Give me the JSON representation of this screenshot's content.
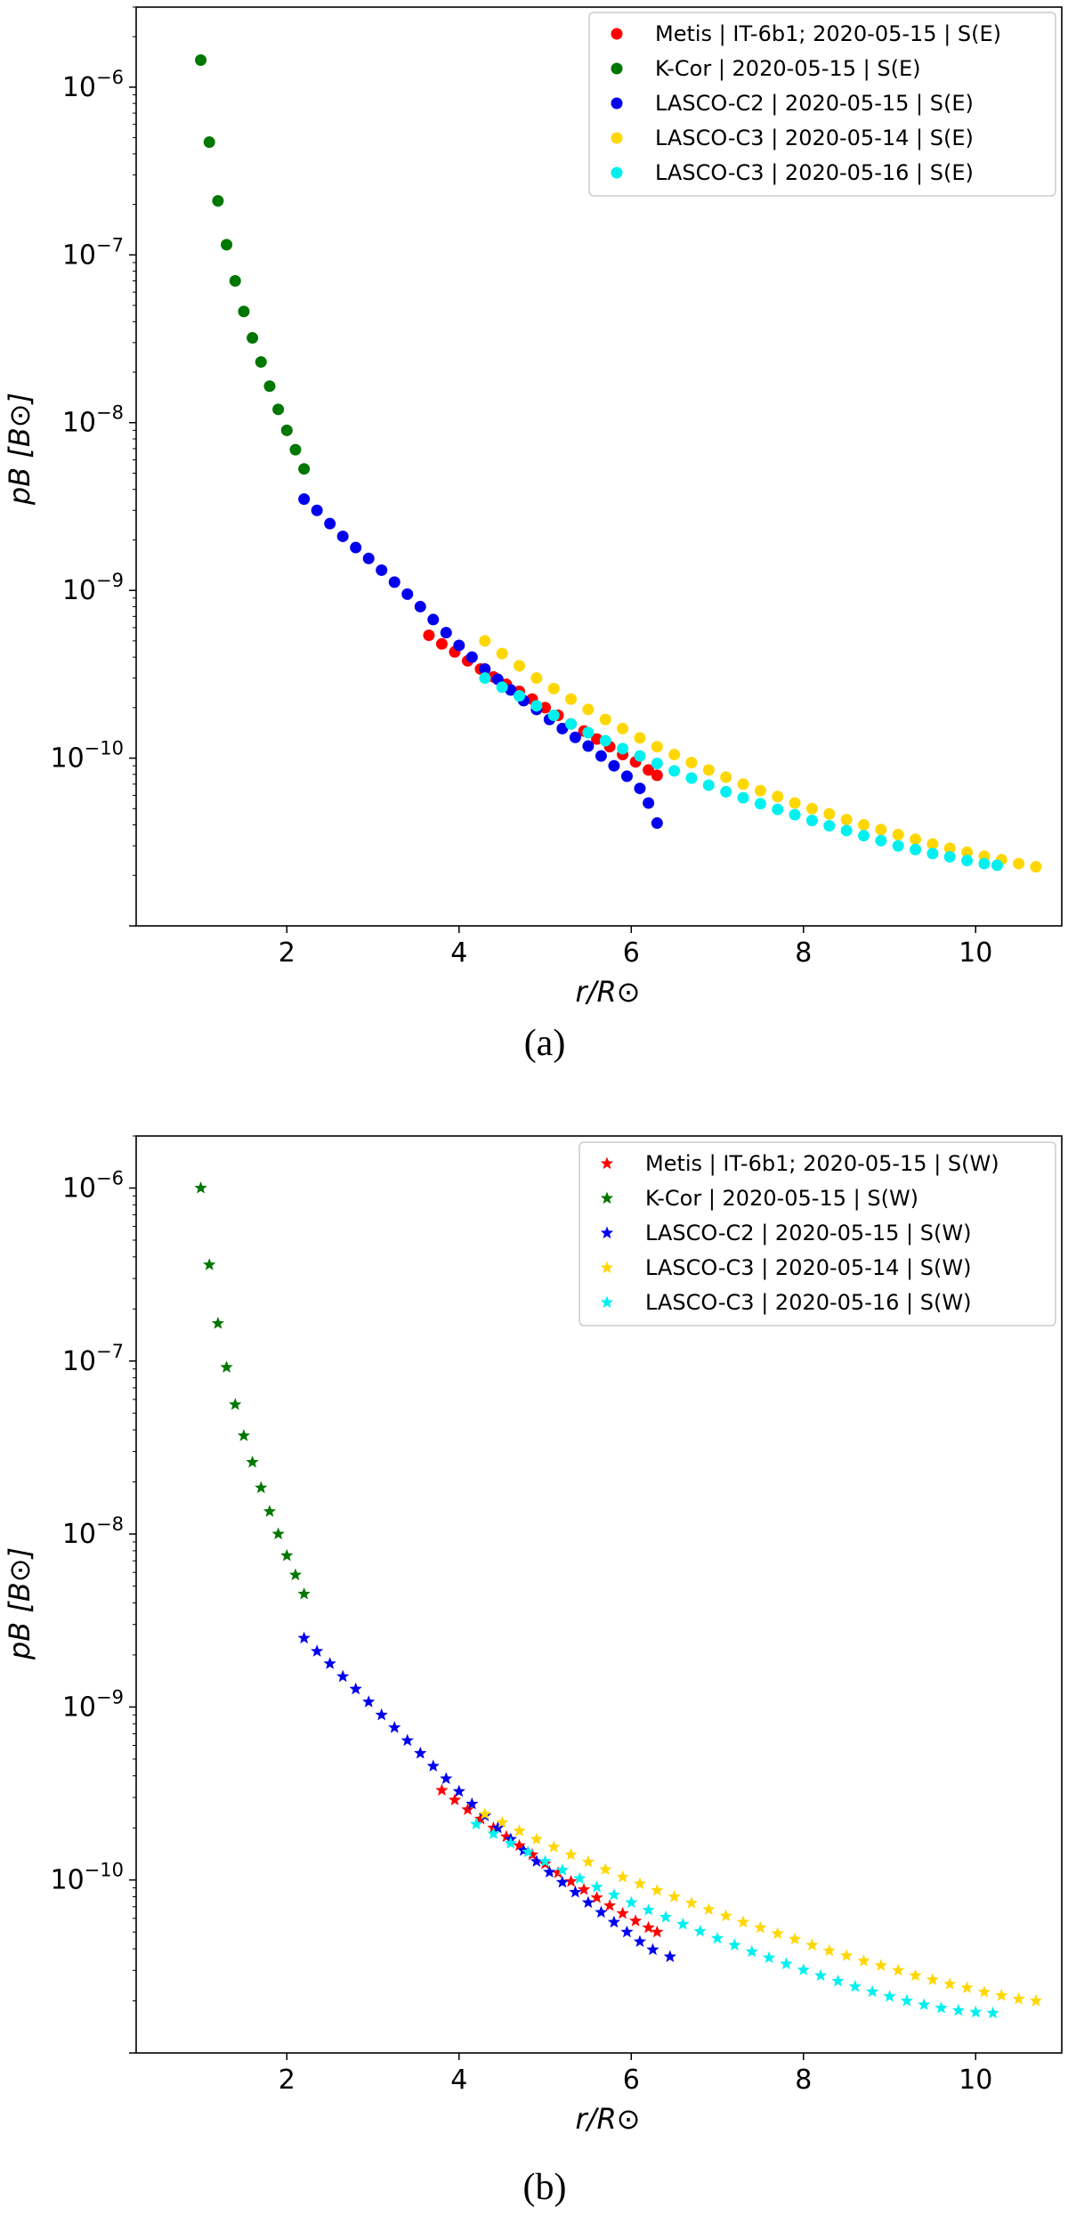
{
  "chart_data": [
    {
      "type": "scatter",
      "caption": "(a)",
      "xlabel": "r/R⊙",
      "ylabel": "pB [B⊙]",
      "yscale": "log",
      "xlim": [
        0.25,
        11.0
      ],
      "ylim": [
        1e-11,
        3e-06
      ],
      "xticks": [
        2,
        4,
        6,
        8,
        10
      ],
      "yticks": [
        1e-10,
        1e-09,
        1e-08,
        1e-07,
        1e-06
      ],
      "ytick_labels": [
        "10^-10",
        "10^-9",
        "10^-8",
        "10^-7",
        "10^-6"
      ],
      "marker": "circle",
      "legend_position": "upper right",
      "series": [
        {
          "name": "Metis | IT-6b1; 2020-05-15 | S(E)",
          "color": "#ff0000",
          "x": [
            3.65,
            3.8,
            3.95,
            4.1,
            4.25,
            4.4,
            4.55,
            4.7,
            4.85,
            5.0,
            5.15,
            5.3,
            5.45,
            5.6,
            5.75,
            5.9,
            6.05,
            6.2,
            6.3
          ],
          "y": [
            5.4e-10,
            4.8e-10,
            4.3e-10,
            3.8e-10,
            3.4e-10,
            3.05e-10,
            2.75e-10,
            2.5e-10,
            2.25e-10,
            2e-10,
            1.8e-10,
            1.6e-10,
            1.45e-10,
            1.3e-10,
            1.17e-10,
            1.05e-10,
            9.5e-11,
            8.5e-11,
            7.9e-11
          ]
        },
        {
          "name": "K-Cor | 2020-05-15 | S(E)",
          "color": "#007700",
          "x": [
            1.0,
            1.1,
            1.2,
            1.3,
            1.4,
            1.5,
            1.6,
            1.7,
            1.8,
            1.9,
            2.0,
            2.1,
            2.2
          ],
          "y": [
            1.45e-06,
            4.7e-07,
            2.1e-07,
            1.15e-07,
            7e-08,
            4.6e-08,
            3.2e-08,
            2.3e-08,
            1.65e-08,
            1.2e-08,
            9e-09,
            6.9e-09,
            5.3e-09
          ]
        },
        {
          "name": "LASCO-C2 | 2020-05-15 | S(E)",
          "color": "#0000ee",
          "x": [
            2.2,
            2.35,
            2.5,
            2.65,
            2.8,
            2.95,
            3.1,
            3.25,
            3.4,
            3.55,
            3.7,
            3.85,
            4.0,
            4.15,
            4.3,
            4.45,
            4.6,
            4.75,
            4.9,
            5.05,
            5.2,
            5.35,
            5.5,
            5.65,
            5.8,
            5.95,
            6.1,
            6.2,
            6.3
          ],
          "y": [
            3.5e-09,
            3e-09,
            2.5e-09,
            2.1e-09,
            1.8e-09,
            1.55e-09,
            1.32e-09,
            1.12e-09,
            9.5e-10,
            8e-10,
            6.7e-10,
            5.6e-10,
            4.7e-10,
            4e-10,
            3.4e-10,
            2.95e-10,
            2.55e-10,
            2.2e-10,
            1.95e-10,
            1.7e-10,
            1.5e-10,
            1.33e-10,
            1.18e-10,
            1.03e-10,
            9e-11,
            7.8e-11,
            6.6e-11,
            5.4e-11,
            4.1e-11
          ]
        },
        {
          "name": "LASCO-C3 | 2020-05-14 | S(E)",
          "color": "#ffd700",
          "x": [
            4.3,
            4.5,
            4.7,
            4.9,
            5.1,
            5.3,
            5.5,
            5.7,
            5.9,
            6.1,
            6.3,
            6.5,
            6.7,
            6.9,
            7.1,
            7.3,
            7.5,
            7.7,
            7.9,
            8.1,
            8.3,
            8.5,
            8.7,
            8.9,
            9.1,
            9.3,
            9.5,
            9.7,
            9.9,
            10.1,
            10.3,
            10.5,
            10.7
          ],
          "y": [
            5e-10,
            4.2e-10,
            3.55e-10,
            3e-10,
            2.6e-10,
            2.25e-10,
            1.95e-10,
            1.7e-10,
            1.5e-10,
            1.32e-10,
            1.17e-10,
            1.05e-10,
            9.4e-11,
            8.5e-11,
            7.7e-11,
            7e-11,
            6.4e-11,
            5.9e-11,
            5.4e-11,
            5e-11,
            4.65e-11,
            4.3e-11,
            4e-11,
            3.75e-11,
            3.5e-11,
            3.28e-11,
            3.08e-11,
            2.9e-11,
            2.75e-11,
            2.6e-11,
            2.48e-11,
            2.35e-11,
            2.25e-11
          ]
        },
        {
          "name": "LASCO-C3 | 2020-05-16 | S(E)",
          "color": "#00f0f0",
          "x": [
            4.3,
            4.5,
            4.7,
            4.9,
            5.1,
            5.3,
            5.5,
            5.7,
            5.9,
            6.1,
            6.3,
            6.5,
            6.7,
            6.9,
            7.1,
            7.3,
            7.5,
            7.7,
            7.9,
            8.1,
            8.3,
            8.5,
            8.7,
            8.9,
            9.1,
            9.3,
            9.5,
            9.7,
            9.9,
            10.1,
            10.25
          ],
          "y": [
            3e-10,
            2.65e-10,
            2.35e-10,
            2.05e-10,
            1.8e-10,
            1.6e-10,
            1.42e-10,
            1.27e-10,
            1.14e-10,
            1.03e-10,
            9.3e-11,
            8.4e-11,
            7.6e-11,
            6.9e-11,
            6.3e-11,
            5.8e-11,
            5.35e-11,
            4.95e-11,
            4.6e-11,
            4.25e-11,
            3.95e-11,
            3.7e-11,
            3.45e-11,
            3.22e-11,
            3e-11,
            2.85e-11,
            2.7e-11,
            2.58e-11,
            2.45e-11,
            2.35e-11,
            2.3e-11
          ]
        }
      ]
    },
    {
      "type": "scatter",
      "caption": "(b)",
      "xlabel": "r/R⊙",
      "ylabel": "pB [B⊙]",
      "yscale": "log",
      "xlim": [
        0.25,
        11.0
      ],
      "ylim": [
        1e-11,
        2e-06
      ],
      "xticks": [
        2,
        4,
        6,
        8,
        10
      ],
      "yticks": [
        1e-10,
        1e-09,
        1e-08,
        1e-07,
        1e-06
      ],
      "ytick_labels": [
        "10^-10",
        "10^-9",
        "10^-8",
        "10^-7",
        "10^-6"
      ],
      "marker": "star",
      "legend_position": "upper right",
      "series": [
        {
          "name": "Metis | IT-6b1; 2020-05-15 | S(W)",
          "color": "#ff0000",
          "x": [
            3.8,
            3.95,
            4.1,
            4.25,
            4.4,
            4.55,
            4.7,
            4.85,
            5.0,
            5.15,
            5.3,
            5.45,
            5.6,
            5.75,
            5.9,
            6.05,
            6.2,
            6.3
          ],
          "y": [
            3.3e-10,
            2.9e-10,
            2.55e-10,
            2.25e-10,
            2e-10,
            1.78e-10,
            1.58e-10,
            1.4e-10,
            1.24e-10,
            1.1e-10,
            9.8e-11,
            8.8e-11,
            7.9e-11,
            7.1e-11,
            6.4e-11,
            5.8e-11,
            5.3e-11,
            5e-11
          ]
        },
        {
          "name": "K-Cor | 2020-05-15 | S(W)",
          "color": "#007700",
          "x": [
            1.0,
            1.1,
            1.2,
            1.3,
            1.4,
            1.5,
            1.6,
            1.7,
            1.8,
            1.9,
            2.0,
            2.1,
            2.2
          ],
          "y": [
            1e-06,
            3.6e-07,
            1.65e-07,
            9.2e-08,
            5.6e-08,
            3.7e-08,
            2.6e-08,
            1.85e-08,
            1.35e-08,
            1e-08,
            7.5e-09,
            5.8e-09,
            4.5e-09
          ]
        },
        {
          "name": "LASCO-C2 | 2020-05-15 | S(W)",
          "color": "#0000ee",
          "x": [
            2.2,
            2.35,
            2.5,
            2.65,
            2.8,
            2.95,
            3.1,
            3.25,
            3.4,
            3.55,
            3.7,
            3.85,
            4.0,
            4.15,
            4.3,
            4.45,
            4.6,
            4.75,
            4.9,
            5.05,
            5.2,
            5.35,
            5.5,
            5.65,
            5.8,
            5.95,
            6.1,
            6.25,
            6.45
          ],
          "y": [
            2.5e-09,
            2.1e-09,
            1.78e-09,
            1.5e-09,
            1.27e-09,
            1.07e-09,
            9e-10,
            7.6e-10,
            6.4e-10,
            5.4e-10,
            4.55e-10,
            3.85e-10,
            3.25e-10,
            2.75e-10,
            2.35e-10,
            2e-10,
            1.72e-10,
            1.48e-10,
            1.28e-10,
            1.11e-10,
            9.7e-11,
            8.5e-11,
            7.4e-11,
            6.5e-11,
            5.7e-11,
            5e-11,
            4.4e-11,
            3.95e-11,
            3.6e-11
          ]
        },
        {
          "name": "LASCO-C3 | 2020-05-14 | S(W)",
          "color": "#ffd700",
          "x": [
            4.3,
            4.5,
            4.7,
            4.9,
            5.1,
            5.3,
            5.5,
            5.7,
            5.9,
            6.1,
            6.3,
            6.5,
            6.7,
            6.9,
            7.1,
            7.3,
            7.5,
            7.7,
            7.9,
            8.1,
            8.3,
            8.5,
            8.7,
            8.9,
            9.1,
            9.3,
            9.5,
            9.7,
            9.9,
            10.1,
            10.3,
            10.5,
            10.7
          ],
          "y": [
            2.4e-10,
            2.15e-10,
            1.92e-10,
            1.72e-10,
            1.55e-10,
            1.4e-10,
            1.27e-10,
            1.15e-10,
            1.04e-10,
            9.5e-11,
            8.7e-11,
            8e-11,
            7.35e-11,
            6.75e-11,
            6.2e-11,
            5.7e-11,
            5.3e-11,
            4.9e-11,
            4.55e-11,
            4.2e-11,
            3.9e-11,
            3.65e-11,
            3.4e-11,
            3.2e-11,
            3e-11,
            2.8e-11,
            2.65e-11,
            2.5e-11,
            2.38e-11,
            2.25e-11,
            2.15e-11,
            2.05e-11,
            2e-11
          ]
        },
        {
          "name": "LASCO-C3 | 2020-05-16 | S(W)",
          "color": "#00f0f0",
          "x": [
            4.2,
            4.4,
            4.6,
            4.8,
            5.0,
            5.2,
            5.4,
            5.6,
            5.8,
            6.0,
            6.2,
            6.4,
            6.6,
            6.8,
            7.0,
            7.2,
            7.4,
            7.6,
            7.8,
            8.0,
            8.2,
            8.4,
            8.6,
            8.8,
            9.0,
            9.2,
            9.4,
            9.6,
            9.8,
            10.0,
            10.2
          ],
          "y": [
            2.1e-10,
            1.85e-10,
            1.63e-10,
            1.45e-10,
            1.28e-10,
            1.14e-10,
            1.02e-10,
            9.1e-11,
            8.2e-11,
            7.4e-11,
            6.7e-11,
            6.1e-11,
            5.55e-11,
            5.05e-11,
            4.6e-11,
            4.2e-11,
            3.85e-11,
            3.55e-11,
            3.27e-11,
            3.02e-11,
            2.8e-11,
            2.6e-11,
            2.42e-11,
            2.26e-11,
            2.12e-11,
            2e-11,
            1.9e-11,
            1.82e-11,
            1.76e-11,
            1.72e-11,
            1.7e-11
          ]
        }
      ]
    }
  ]
}
